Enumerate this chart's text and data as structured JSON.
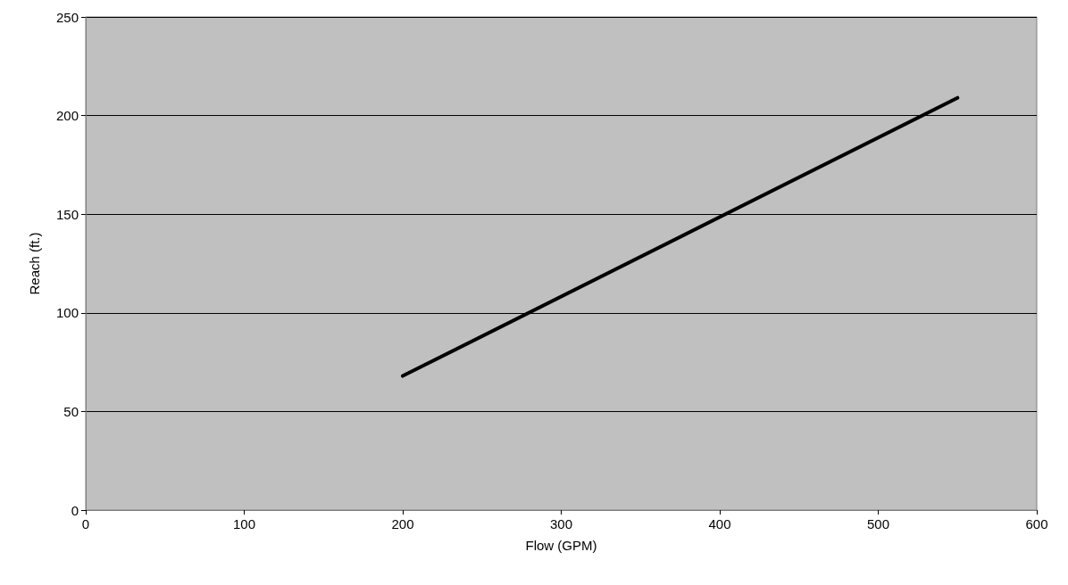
{
  "chart_data": {
    "type": "line",
    "xlabel": "Flow (GPM)",
    "ylabel": "Reach (ft.)",
    "series": [
      {
        "color": "#000000",
        "x": [
          200,
          550
        ],
        "values": [
          68,
          209
        ]
      }
    ],
    "xlim": [
      0,
      600
    ],
    "xticks": [
      0,
      100,
      200,
      300,
      400,
      500,
      600
    ],
    "ylim": [
      0,
      250
    ],
    "yticks": [
      0,
      50,
      100,
      150,
      200,
      250
    ],
    "grid": "y",
    "marker": "none",
    "line_style": "solid"
  }
}
